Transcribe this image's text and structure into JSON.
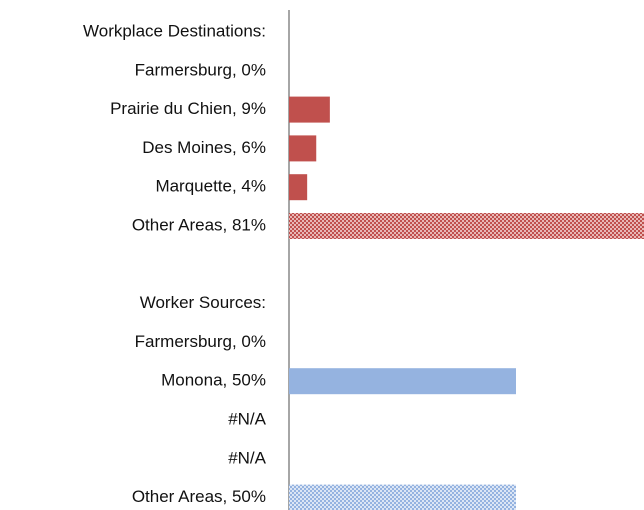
{
  "chart_data": {
    "type": "hbar",
    "categories": [
      "Workplace Destinations:",
      "Farmersburg, 0%",
      "Prairie du Chien, 9%",
      "Des Moines, 6%",
      "Marquette, 4%",
      "Other Areas, 81%",
      null,
      "Worker Sources:",
      "Farmersburg, 0%",
      "Monona, 50%",
      "#N/A",
      "#N/A",
      "Other Areas, 50%"
    ],
    "values": [
      null,
      0,
      9,
      6,
      4,
      81,
      null,
      null,
      0,
      50,
      null,
      null,
      50
    ],
    "colors": [
      null,
      "#c0504d",
      "#c0504d",
      "#c0504d",
      "#c0504d",
      "#c0504d",
      null,
      null,
      "#95b3e0",
      "#95b3e0",
      "#95b3e0",
      "#95b3e0",
      "#95b3e0"
    ],
    "patterned": [
      false,
      false,
      false,
      false,
      false,
      true,
      false,
      false,
      false,
      false,
      false,
      false,
      true
    ],
    "xlim": [
      0,
      100
    ]
  }
}
